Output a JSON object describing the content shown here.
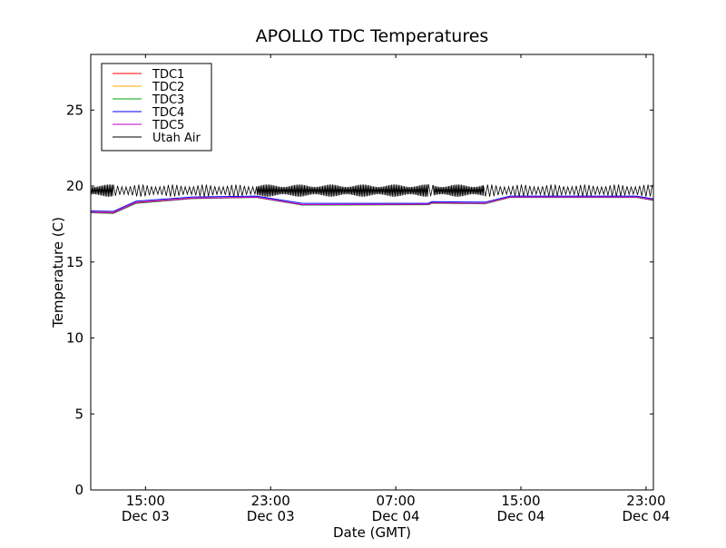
{
  "chart_data": {
    "type": "line",
    "title": "APOLLO TDC Temperatures",
    "xlabel": "Date (GMT)",
    "ylabel": "Temperature (C)",
    "x_units": "hours since Dec 03 00:00 GMT",
    "xlim": [
      11.5,
      47.47
    ],
    "ylim": [
      0,
      28.66
    ],
    "grid": false,
    "legend_position": "top-left",
    "x_ticks": [
      {
        "value": 15,
        "label": "15:00",
        "sublabel": "Dec 03"
      },
      {
        "value": 23,
        "label": "23:00",
        "sublabel": "Dec 03"
      },
      {
        "value": 31,
        "label": "07:00",
        "sublabel": "Dec 04"
      },
      {
        "value": 39,
        "label": "15:00",
        "sublabel": "Dec 04"
      },
      {
        "value": 47,
        "label": "23:00",
        "sublabel": "Dec 04"
      }
    ],
    "y_ticks": [
      {
        "value": 0,
        "label": "0"
      },
      {
        "value": 5,
        "label": "5"
      },
      {
        "value": 10,
        "label": "10"
      },
      {
        "value": 15,
        "label": "15"
      },
      {
        "value": 20,
        "label": "20"
      },
      {
        "value": 25,
        "label": "25"
      }
    ],
    "series": [
      {
        "name": "TDC1",
        "color": "#ff0000",
        "x": [
          11.5,
          12.95,
          14.4,
          18,
          22.1,
          25,
          33.1,
          33.3,
          36.7,
          38.3,
          46.4,
          47.47
        ],
        "y": [
          18.28,
          18.25,
          18.92,
          19.2,
          19.27,
          18.78,
          18.8,
          18.9,
          18.86,
          19.27,
          19.27,
          19.08
        ]
      },
      {
        "name": "TDC2",
        "color": "#ffaa00",
        "x": [
          11.5,
          12.95,
          14.4,
          18,
          22.1,
          25,
          33.1,
          33.3,
          36.7,
          38.3,
          46.4,
          47.47
        ],
        "y": [
          18.26,
          18.22,
          18.88,
          19.18,
          19.26,
          18.76,
          18.78,
          18.88,
          18.84,
          19.26,
          19.26,
          19.06
        ]
      },
      {
        "name": "TDC3",
        "color": "#00a000",
        "x": [
          11.5,
          12.95,
          14.4,
          18,
          22.1,
          25,
          33.1,
          33.3,
          36.7,
          38.3,
          46.4,
          47.47
        ],
        "y": [
          18.24,
          18.2,
          18.86,
          19.17,
          19.25,
          18.75,
          18.77,
          18.87,
          18.83,
          19.25,
          19.25,
          19.05
        ]
      },
      {
        "name": "TDC4",
        "color": "#0000ff",
        "x": [
          11.5,
          12.95,
          14.4,
          18,
          22.1,
          25,
          33.1,
          33.3,
          36.7,
          38.3,
          46.4,
          47.47
        ],
        "y": [
          18.36,
          18.33,
          19.0,
          19.28,
          19.34,
          18.86,
          18.87,
          18.97,
          18.94,
          19.34,
          19.34,
          19.15
        ]
      },
      {
        "name": "TDC5",
        "color": "#bf00bf",
        "x": [
          11.5,
          12.95,
          14.4,
          18,
          22.1,
          25,
          33.1,
          33.3,
          36.7,
          38.3,
          46.4,
          47.47
        ],
        "y": [
          18.27,
          18.23,
          18.9,
          19.19,
          19.26,
          18.77,
          18.79,
          18.89,
          18.85,
          19.26,
          19.26,
          19.07
        ]
      },
      {
        "name": "Utah Air",
        "color": "#000000",
        "mean": 19.7,
        "amplitude": 0.4,
        "segments": [
          {
            "x": [
              11.5,
              12.95
            ],
            "cycle_hours": 0.09
          },
          {
            "x": [
              12.95,
              22.1
            ],
            "cycle_hours": 0.27
          },
          {
            "x": [
              22.1,
              33.1
            ],
            "cycle_hours": 0.09
          },
          {
            "x": [
              33.1,
              33.4
            ],
            "cycle_hours": 0.27
          },
          {
            "x": [
              33.4,
              36.6
            ],
            "cycle_hours": 0.09
          },
          {
            "x": [
              36.6,
              47.47
            ],
            "cycle_hours": 0.27
          }
        ]
      }
    ]
  }
}
